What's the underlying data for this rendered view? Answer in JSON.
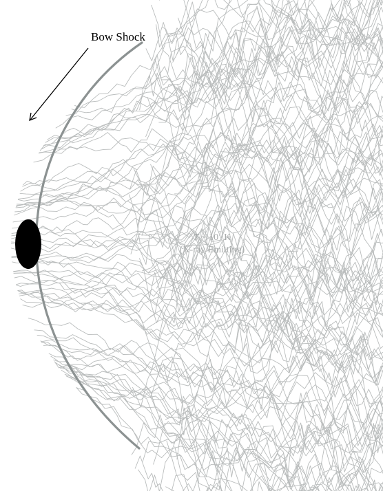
{
  "labels": {
    "bow_shock": "Bow Shock",
    "temperature_symbol": "T",
    "temperature_approx": " ~ 10",
    "temperature_exponent": "7",
    "temperature_unit": " K",
    "emission_note": "(X-ray Emitting)"
  },
  "colors": {
    "background": "#ffffff",
    "shock_curve": "#8c9292",
    "turbulence_lines": "#b9bcbc",
    "label_text": "#000000",
    "hot_gas_text": "#a9acac",
    "body": "#000000",
    "arrow": "#000000"
  },
  "icons": {
    "body": "black-ellipse",
    "arrow": "arrow-pointing-down-left"
  }
}
